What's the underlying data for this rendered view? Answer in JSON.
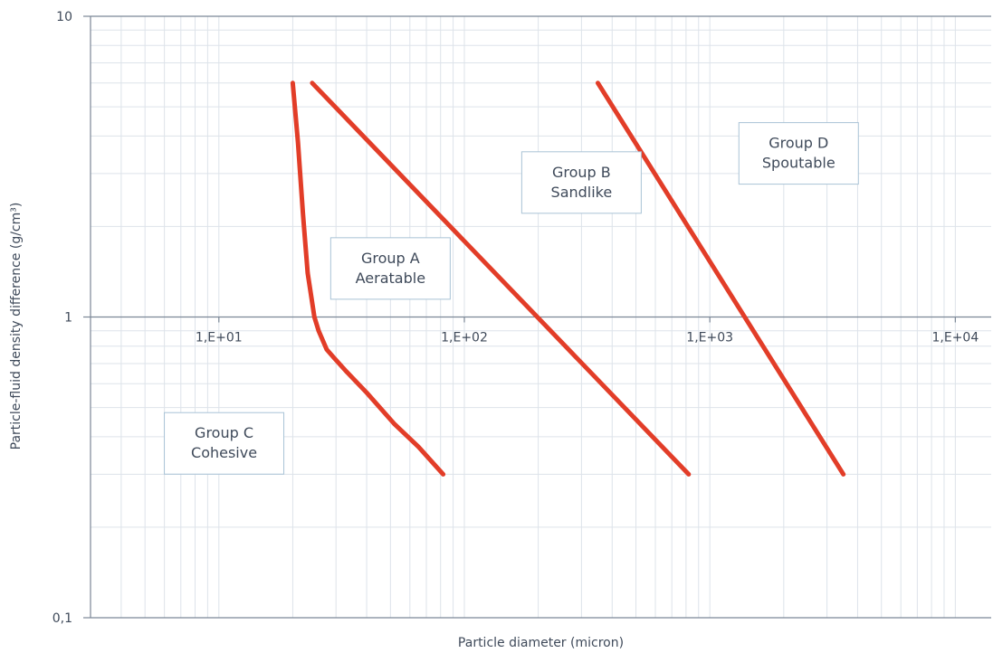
{
  "chart_data": {
    "type": "line",
    "title": "",
    "xlabel": "Particle diameter (micron)",
    "ylabel": "Particle-fluid density difference (g/cm³)",
    "x_scale": "log",
    "y_scale": "log",
    "xlim": [
      3,
      14000
    ],
    "ylim": [
      0.1,
      10
    ],
    "grid": true,
    "x_ticks": [
      {
        "value": 10,
        "label": "1,E+01"
      },
      {
        "value": 100,
        "label": "1,E+02"
      },
      {
        "value": 1000,
        "label": "1,E+03"
      },
      {
        "value": 10000,
        "label": "1,E+04"
      }
    ],
    "y_ticks": [
      {
        "value": 10,
        "label": "10"
      },
      {
        "value": 1,
        "label": "1"
      },
      {
        "value": 0.1,
        "label": "0,1"
      }
    ],
    "series": [
      {
        "color": "#e23d28",
        "points": [
          [
            20,
            6
          ],
          [
            21,
            3.8
          ],
          [
            22,
            2.2
          ],
          [
            23,
            1.4
          ],
          [
            24.5,
            1.0
          ],
          [
            25.5,
            0.9
          ],
          [
            27.5,
            0.78
          ],
          [
            29.5,
            0.73
          ],
          [
            33,
            0.66
          ],
          [
            40,
            0.56
          ],
          [
            52,
            0.44
          ],
          [
            65,
            0.37
          ],
          [
            82,
            0.3
          ]
        ]
      },
      {
        "color": "#e23d28",
        "points": [
          [
            24,
            6
          ],
          [
            820,
            0.3
          ]
        ]
      },
      {
        "color": "#e23d28",
        "points": [
          [
            350,
            6
          ],
          [
            3500,
            0.3
          ]
        ]
      }
    ],
    "annotations": [
      {
        "lines": [
          "Group A",
          "Aeratable"
        ],
        "x": 50,
        "y": 1.45
      },
      {
        "lines": [
          "Group B",
          "Sandlike"
        ],
        "x": 300,
        "y": 2.8
      },
      {
        "lines": [
          "Group C",
          "Cohesive"
        ],
        "x": 10.5,
        "y": 0.38
      },
      {
        "lines": [
          "Group D",
          "Spoutable"
        ],
        "x": 2300,
        "y": 3.5
      }
    ]
  }
}
